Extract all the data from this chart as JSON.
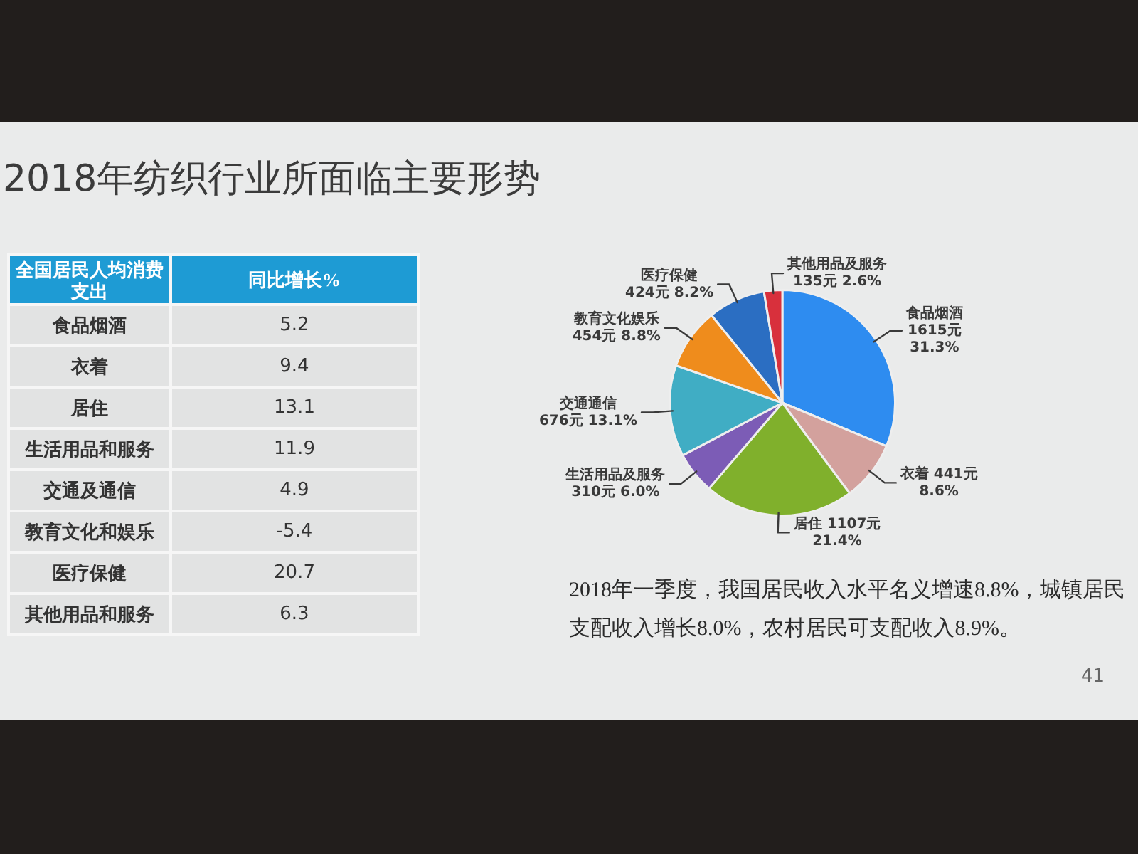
{
  "chart_data": [
    {
      "type": "other",
      "title": "2018年纺织行业所面临主要形势",
      "xlabel": "全国居民人均消费支出",
      "ylabel": "同比增长%",
      "categories": [
        "食品烟酒",
        "衣着",
        "居住",
        "生活用品和服务",
        "交通及通信",
        "教育文化和娱乐",
        "医疗保健",
        "其他用品和服务"
      ],
      "values": [
        5.2,
        9.4,
        13.1,
        11.9,
        4.9,
        -5.4,
        20.7,
        6.3
      ],
      "data_labels": true
    },
    {
      "type": "pie",
      "categories": [
        "食品烟酒",
        "衣着",
        "居住",
        "生活用品及服务",
        "交通通信",
        "教育文化娱乐",
        "医疗保健",
        "其他用品及服务"
      ],
      "values": [
        1615,
        441,
        1107,
        310,
        676,
        454,
        424,
        135
      ],
      "colors": [
        "#2e8cf0",
        "#d3a19d",
        "#80b02c",
        "#7c5cb6",
        "#40adc4",
        "#ef8c1c",
        "#2b6ec2",
        "#d8303c"
      ],
      "value_labels": [
        "1615元 31.3%",
        "441元 8.6%",
        "1107元 21.4%",
        "310元 6.0%",
        "676元 13.1%",
        "454元 8.8%",
        "424元 8.2%",
        "135元 2.6%"
      ],
      "annotations": [
        "2018年一季度，我国居民收入水平名义增速8.8%，城镇居民支配收入增长8.0%，农村居民可支配收入8.9%。",
        "41"
      ]
    }
  ]
}
